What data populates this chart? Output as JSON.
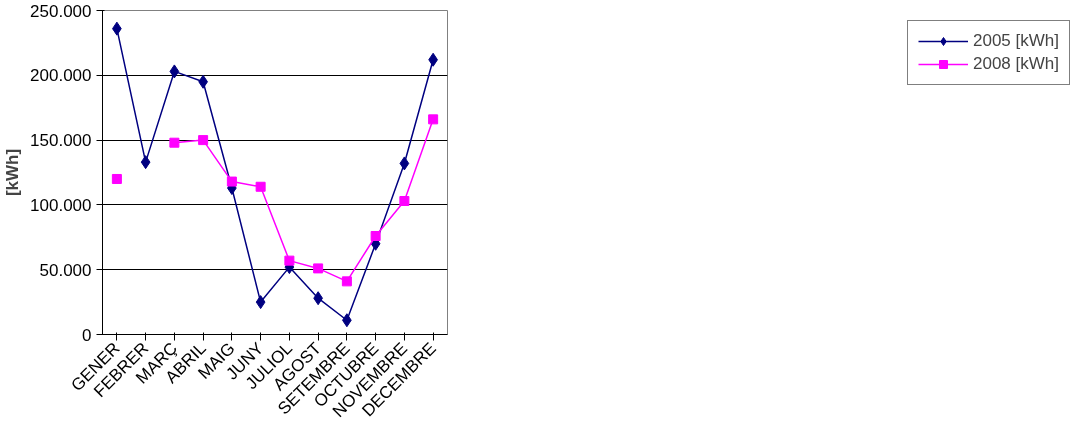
{
  "chart_data": {
    "type": "line",
    "ylabel": "[kWh]",
    "categories": [
      "GENER",
      "FEBRER",
      "MARÇ",
      "ABRIL",
      "MAIG",
      "JUNY",
      "JULIOL",
      "AGOST",
      "SETEMBRE",
      "OCTUBRE",
      "NOVEMBRE",
      "DECEMBRE"
    ],
    "series": [
      {
        "name": "2005 [kWh]",
        "color": "#000080",
        "marker": "diamond",
        "values": [
          236000,
          133000,
          203000,
          195000,
          113000,
          25000,
          52000,
          28000,
          11000,
          70000,
          132000,
          212000
        ]
      },
      {
        "name": "2008 [kWh]",
        "color": "#ff00ff",
        "marker": "square",
        "values": [
          120000,
          null,
          148000,
          150000,
          118000,
          114000,
          57000,
          51000,
          41000,
          76000,
          103000,
          166000
        ]
      }
    ],
    "ylim": [
      0,
      250000
    ],
    "yticks": [
      {
        "value": 0,
        "label": "0"
      },
      {
        "value": 50000,
        "label": "50.000"
      },
      {
        "value": 100000,
        "label": "100.000"
      },
      {
        "value": 150000,
        "label": "150.000"
      },
      {
        "value": 200000,
        "label": "200.000"
      },
      {
        "value": 250000,
        "label": "250.000"
      }
    ],
    "grid": "y",
    "legend": "right",
    "line_style": "solid"
  }
}
